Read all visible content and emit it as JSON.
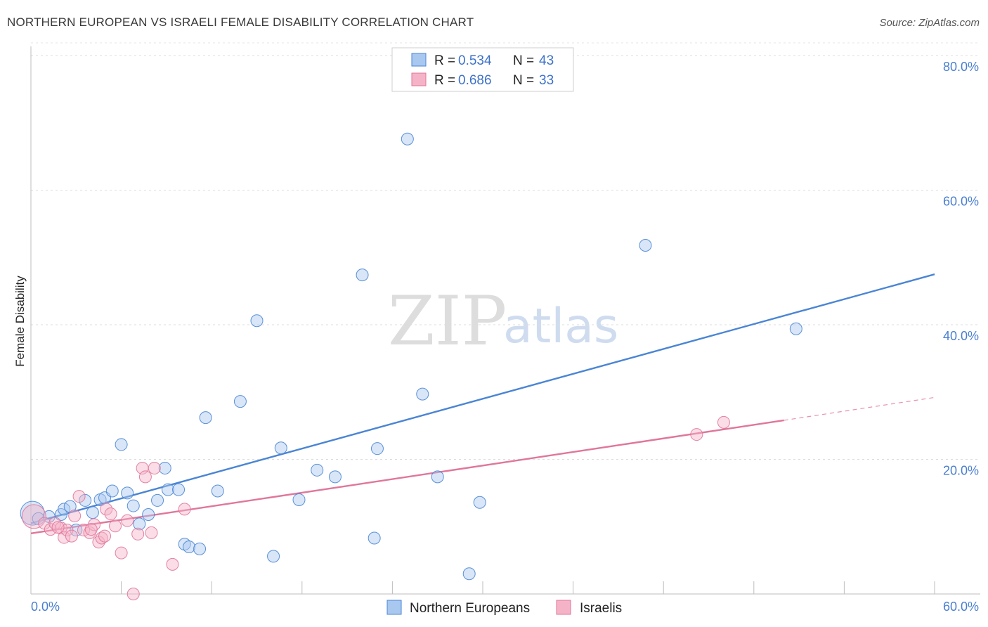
{
  "title": "NORTHERN EUROPEAN VS ISRAELI FEMALE DISABILITY CORRELATION CHART",
  "source": "Source: ZipAtlas.com",
  "watermark": {
    "zip": "ZIP",
    "atlas": "atlas"
  },
  "chart_data": {
    "type": "scatter",
    "title": "NORTHERN EUROPEAN VS ISRAELI FEMALE DISABILITY CORRELATION CHART",
    "xlabel": "",
    "ylabel": "Female Disability",
    "xlim": [
      0,
      60
    ],
    "ylim": [
      0,
      80
    ],
    "x_tick_labels": {
      "left": "0.0%",
      "right": "60.0%"
    },
    "y_ticks": [
      20,
      40,
      60,
      80
    ],
    "y_tick_labels": [
      "20.0%",
      "40.0%",
      "60.0%",
      "80.0%"
    ],
    "grid": true,
    "legend": [
      {
        "r_label": "R = ",
        "r_value": "0.534",
        "n_label": "N = ",
        "n_value": "43"
      },
      {
        "r_label": "R = ",
        "r_value": "0.686",
        "n_label": "N = ",
        "n_value": "33"
      }
    ],
    "series": [
      {
        "name": "Northern Europeans",
        "color": "#4a85d4",
        "fill": "#a9c8f0",
        "trend": {
          "x0": 0,
          "y0": 10.5,
          "x1": 60,
          "y1": 47.5
        },
        "points": [
          [
            0.1,
            12.0,
            1
          ],
          [
            0.5,
            11.2,
            0
          ],
          [
            1.2,
            11.5,
            0
          ],
          [
            2.0,
            11.8,
            0
          ],
          [
            2.2,
            12.6,
            0
          ],
          [
            2.6,
            13.0,
            0
          ],
          [
            3.0,
            9.5,
            0
          ],
          [
            3.6,
            13.9,
            0
          ],
          [
            4.1,
            12.1,
            0
          ],
          [
            4.6,
            14.0,
            0
          ],
          [
            4.9,
            14.3,
            0
          ],
          [
            5.4,
            15.3,
            0
          ],
          [
            6.0,
            22.2,
            0
          ],
          [
            6.4,
            15.0,
            0
          ],
          [
            6.8,
            13.1,
            0
          ],
          [
            7.2,
            10.4,
            0
          ],
          [
            7.8,
            11.8,
            0
          ],
          [
            8.4,
            13.9,
            0
          ],
          [
            8.9,
            18.7,
            0
          ],
          [
            9.1,
            15.5,
            0
          ],
          [
            9.8,
            15.5,
            0
          ],
          [
            10.2,
            7.4,
            0
          ],
          [
            10.5,
            7.0,
            0
          ],
          [
            11.2,
            6.7,
            0
          ],
          [
            11.6,
            26.2,
            0
          ],
          [
            12.4,
            15.3,
            0
          ],
          [
            13.9,
            28.6,
            0
          ],
          [
            15.0,
            40.6,
            0
          ],
          [
            16.1,
            5.6,
            0
          ],
          [
            16.6,
            21.7,
            0
          ],
          [
            17.8,
            14.0,
            0
          ],
          [
            19.0,
            18.4,
            0
          ],
          [
            20.2,
            17.4,
            0
          ],
          [
            22.0,
            47.4,
            0
          ],
          [
            22.8,
            8.3,
            0
          ],
          [
            23.0,
            21.6,
            0
          ],
          [
            25.0,
            67.6,
            0
          ],
          [
            26.0,
            29.7,
            0
          ],
          [
            27.0,
            17.4,
            0
          ],
          [
            29.1,
            3.0,
            0
          ],
          [
            29.8,
            13.6,
            0
          ],
          [
            40.8,
            51.8,
            0
          ],
          [
            50.8,
            39.4,
            0
          ]
        ]
      },
      {
        "name": "Israelis",
        "color": "#e0769b",
        "fill": "#f5b3c7",
        "trend": {
          "x0": 0,
          "y0": 9.0,
          "x1": 50,
          "y1": 25.8
        },
        "trend_ext": {
          "x0": 50,
          "y0": 25.8,
          "x1": 60,
          "y1": 29.2
        },
        "points": [
          [
            0.2,
            11.5,
            1
          ],
          [
            0.9,
            10.5,
            0
          ],
          [
            1.3,
            9.6,
            0
          ],
          [
            1.6,
            10.5,
            0
          ],
          [
            2.0,
            9.8,
            0
          ],
          [
            2.2,
            8.4,
            0
          ],
          [
            2.4,
            9.5,
            0
          ],
          [
            2.7,
            8.6,
            0
          ],
          [
            2.9,
            11.6,
            0
          ],
          [
            3.2,
            14.5,
            0
          ],
          [
            3.5,
            9.5,
            0
          ],
          [
            3.9,
            9.1,
            0
          ],
          [
            4.2,
            10.3,
            0
          ],
          [
            4.5,
            7.7,
            0
          ],
          [
            4.7,
            8.3,
            0
          ],
          [
            4.9,
            8.6,
            0
          ],
          [
            5.0,
            12.6,
            0
          ],
          [
            5.3,
            11.9,
            0
          ],
          [
            5.6,
            10.1,
            0
          ],
          [
            6.0,
            6.1,
            0
          ],
          [
            6.4,
            10.9,
            0
          ],
          [
            6.8,
            0.0,
            0
          ],
          [
            7.1,
            8.9,
            0
          ],
          [
            7.4,
            18.7,
            0
          ],
          [
            7.6,
            17.4,
            0
          ],
          [
            8.0,
            9.1,
            0
          ],
          [
            8.2,
            18.7,
            0
          ],
          [
            9.4,
            4.4,
            0
          ],
          [
            10.2,
            12.6,
            0
          ],
          [
            44.2,
            23.7,
            0
          ],
          [
            46.0,
            25.5,
            0
          ],
          [
            4.0,
            9.6,
            0
          ],
          [
            1.8,
            9.9,
            0
          ]
        ]
      }
    ]
  }
}
